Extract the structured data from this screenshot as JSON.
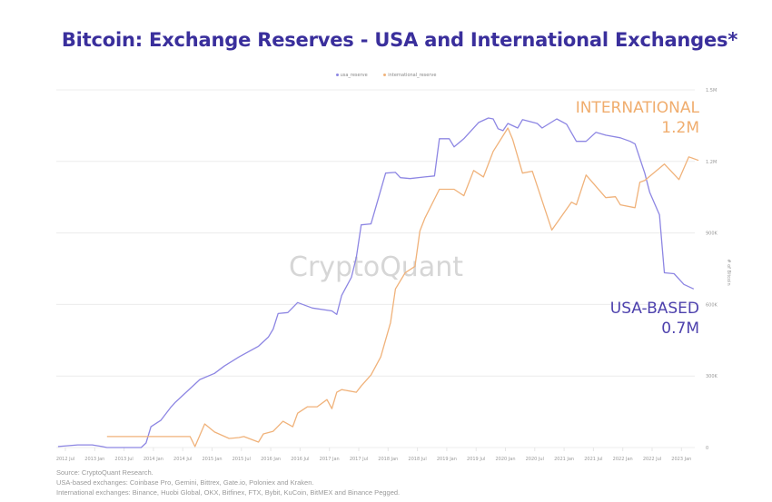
{
  "chart_data": {
    "type": "line",
    "title": "Bitcoin: Exchange Reserves - USA and International Exchanges*",
    "ylabel": "# of Bitcoin",
    "ylim": [
      0,
      1500000
    ],
    "yticks": [
      0,
      300000,
      600000,
      900000,
      1200000,
      1500000
    ],
    "ytick_labels": [
      "0",
      "300K",
      "600K",
      "900K",
      "1.2M",
      "1.5M"
    ],
    "xtick_labels": [
      "2012 Jul",
      "2013 Jan",
      "2013 Jul",
      "2014 Jan",
      "2014 Jul",
      "2015 Jan",
      "2015 Jul",
      "2016 Jan",
      "2016 Jul",
      "2017 Jan",
      "2017 Jul",
      "2018 Jan",
      "2018 Jul",
      "2019 Jan",
      "2019 Jul",
      "2020 Jan",
      "2020 Jul",
      "2021 Jan",
      "2021 Jul",
      "2022 Jan",
      "2022 Jul",
      "2023 Jan"
    ],
    "grid": true,
    "legend_position": "top-center",
    "watermark": "CryptoQuant",
    "series": [
      {
        "name": "usa_reserve",
        "color": "#8d86e3",
        "points": [
          [
            "2012-05",
            4000
          ],
          [
            "2012-09",
            11000
          ],
          [
            "2012-12",
            11000
          ],
          [
            "2013-02",
            4000
          ],
          [
            "2013-03",
            0
          ],
          [
            "2013-10",
            0
          ],
          [
            "2013-11",
            19000
          ],
          [
            "2013-12",
            87000
          ],
          [
            "2014-02",
            114000
          ],
          [
            "2014-04",
            167000
          ],
          [
            "2014-05",
            190000
          ],
          [
            "2014-10",
            285000
          ],
          [
            "2015-01",
            311000
          ],
          [
            "2015-03",
            342000
          ],
          [
            "2015-06",
            380000
          ],
          [
            "2015-10",
            425000
          ],
          [
            "2015-12",
            463000
          ],
          [
            "2016-01",
            497000
          ],
          [
            "2016-02",
            562000
          ],
          [
            "2016-04",
            566000
          ],
          [
            "2016-06",
            608000
          ],
          [
            "2016-09",
            585000
          ],
          [
            "2017-01",
            573000
          ],
          [
            "2017-02",
            558000
          ],
          [
            "2017-03",
            638000
          ],
          [
            "2017-05",
            714000
          ],
          [
            "2017-06",
            797000
          ],
          [
            "2017-07",
            934000
          ],
          [
            "2017-09",
            938000
          ],
          [
            "2017-12",
            1151000
          ],
          [
            "2018-02",
            1154000
          ],
          [
            "2018-03",
            1132000
          ],
          [
            "2018-05",
            1128000
          ],
          [
            "2018-08",
            1135000
          ],
          [
            "2018-10",
            1139000
          ],
          [
            "2018-11",
            1295000
          ],
          [
            "2019-01",
            1295000
          ],
          [
            "2019-02",
            1261000
          ],
          [
            "2019-04",
            1295000
          ],
          [
            "2019-07",
            1363000
          ],
          [
            "2019-09",
            1382000
          ],
          [
            "2019-10",
            1378000
          ],
          [
            "2019-11",
            1337000
          ],
          [
            "2019-12",
            1329000
          ],
          [
            "2020-01",
            1359000
          ],
          [
            "2020-03",
            1340000
          ],
          [
            "2020-04",
            1375000
          ],
          [
            "2020-07",
            1359000
          ],
          [
            "2020-08",
            1340000
          ],
          [
            "2020-11",
            1378000
          ],
          [
            "2021-01",
            1356000
          ],
          [
            "2021-03",
            1284000
          ],
          [
            "2021-05",
            1284000
          ],
          [
            "2021-07",
            1322000
          ],
          [
            "2021-09",
            1310000
          ],
          [
            "2021-12",
            1299000
          ],
          [
            "2022-02",
            1284000
          ],
          [
            "2022-03",
            1273000
          ],
          [
            "2022-05",
            1151000
          ],
          [
            "2022-06",
            1071000
          ],
          [
            "2022-08",
            976000
          ],
          [
            "2022-09",
            733000
          ],
          [
            "2022-11",
            729000
          ],
          [
            "2023-01",
            684000
          ],
          [
            "2023-03",
            665000
          ]
        ]
      },
      {
        "name": "international_reserve",
        "color": "#f0b27a",
        "points": [
          [
            "2013-03",
            46000
          ],
          [
            "2014-08",
            46000
          ],
          [
            "2014-09",
            4000
          ],
          [
            "2014-11",
            99000
          ],
          [
            "2015-01",
            65000
          ],
          [
            "2015-04",
            38000
          ],
          [
            "2015-06",
            42000
          ],
          [
            "2015-07",
            46000
          ],
          [
            "2015-10",
            23000
          ],
          [
            "2015-11",
            57000
          ],
          [
            "2016-01",
            68000
          ],
          [
            "2016-03",
            110000
          ],
          [
            "2016-05",
            87000
          ],
          [
            "2016-06",
            144000
          ],
          [
            "2016-08",
            171000
          ],
          [
            "2016-10",
            171000
          ],
          [
            "2016-12",
            201000
          ],
          [
            "2017-01",
            163000
          ],
          [
            "2017-02",
            232000
          ],
          [
            "2017-03",
            243000
          ],
          [
            "2017-06",
            232000
          ],
          [
            "2017-07",
            258000
          ],
          [
            "2017-09",
            304000
          ],
          [
            "2017-11",
            380000
          ],
          [
            "2018-01",
            524000
          ],
          [
            "2018-02",
            665000
          ],
          [
            "2018-04",
            733000
          ],
          [
            "2018-06",
            760000
          ],
          [
            "2018-07",
            908000
          ],
          [
            "2018-08",
            961000
          ],
          [
            "2018-11",
            1083000
          ],
          [
            "2019-02",
            1083000
          ],
          [
            "2019-04",
            1056000
          ],
          [
            "2019-06",
            1162000
          ],
          [
            "2019-08",
            1135000
          ],
          [
            "2019-10",
            1242000
          ],
          [
            "2020-01",
            1340000
          ],
          [
            "2020-02",
            1291000
          ],
          [
            "2020-04",
            1151000
          ],
          [
            "2020-06",
            1159000
          ],
          [
            "2020-10",
            912000
          ],
          [
            "2021-02",
            1029000
          ],
          [
            "2021-03",
            1018000
          ],
          [
            "2021-05",
            1143000
          ],
          [
            "2021-09",
            1048000
          ],
          [
            "2021-11",
            1052000
          ],
          [
            "2021-12",
            1018000
          ],
          [
            "2022-03",
            1006000
          ],
          [
            "2022-04",
            1113000
          ],
          [
            "2022-05",
            1120000
          ],
          [
            "2022-09",
            1189000
          ],
          [
            "2022-12",
            1124000
          ],
          [
            "2023-02",
            1219000
          ],
          [
            "2023-04",
            1204000
          ]
        ]
      }
    ],
    "annotations": {
      "international_label": "INTERNATIONAL",
      "international_value": "1.2M",
      "usa_label": "USA-BASED",
      "usa_value": "0.7M"
    }
  },
  "footer": {
    "source": "Source: CryptoQuant Research.",
    "usa_note": "USA-based exchanges: Coinbase Pro, Gemini, Bittrex, Gate.io, Poloniex and Kraken.",
    "intl_note": "International exchanges: Binance, Huobi Global, OKX, Bitfinex, FTX, Bybit, KuCoin, BitMEX and Binance Pegged."
  }
}
